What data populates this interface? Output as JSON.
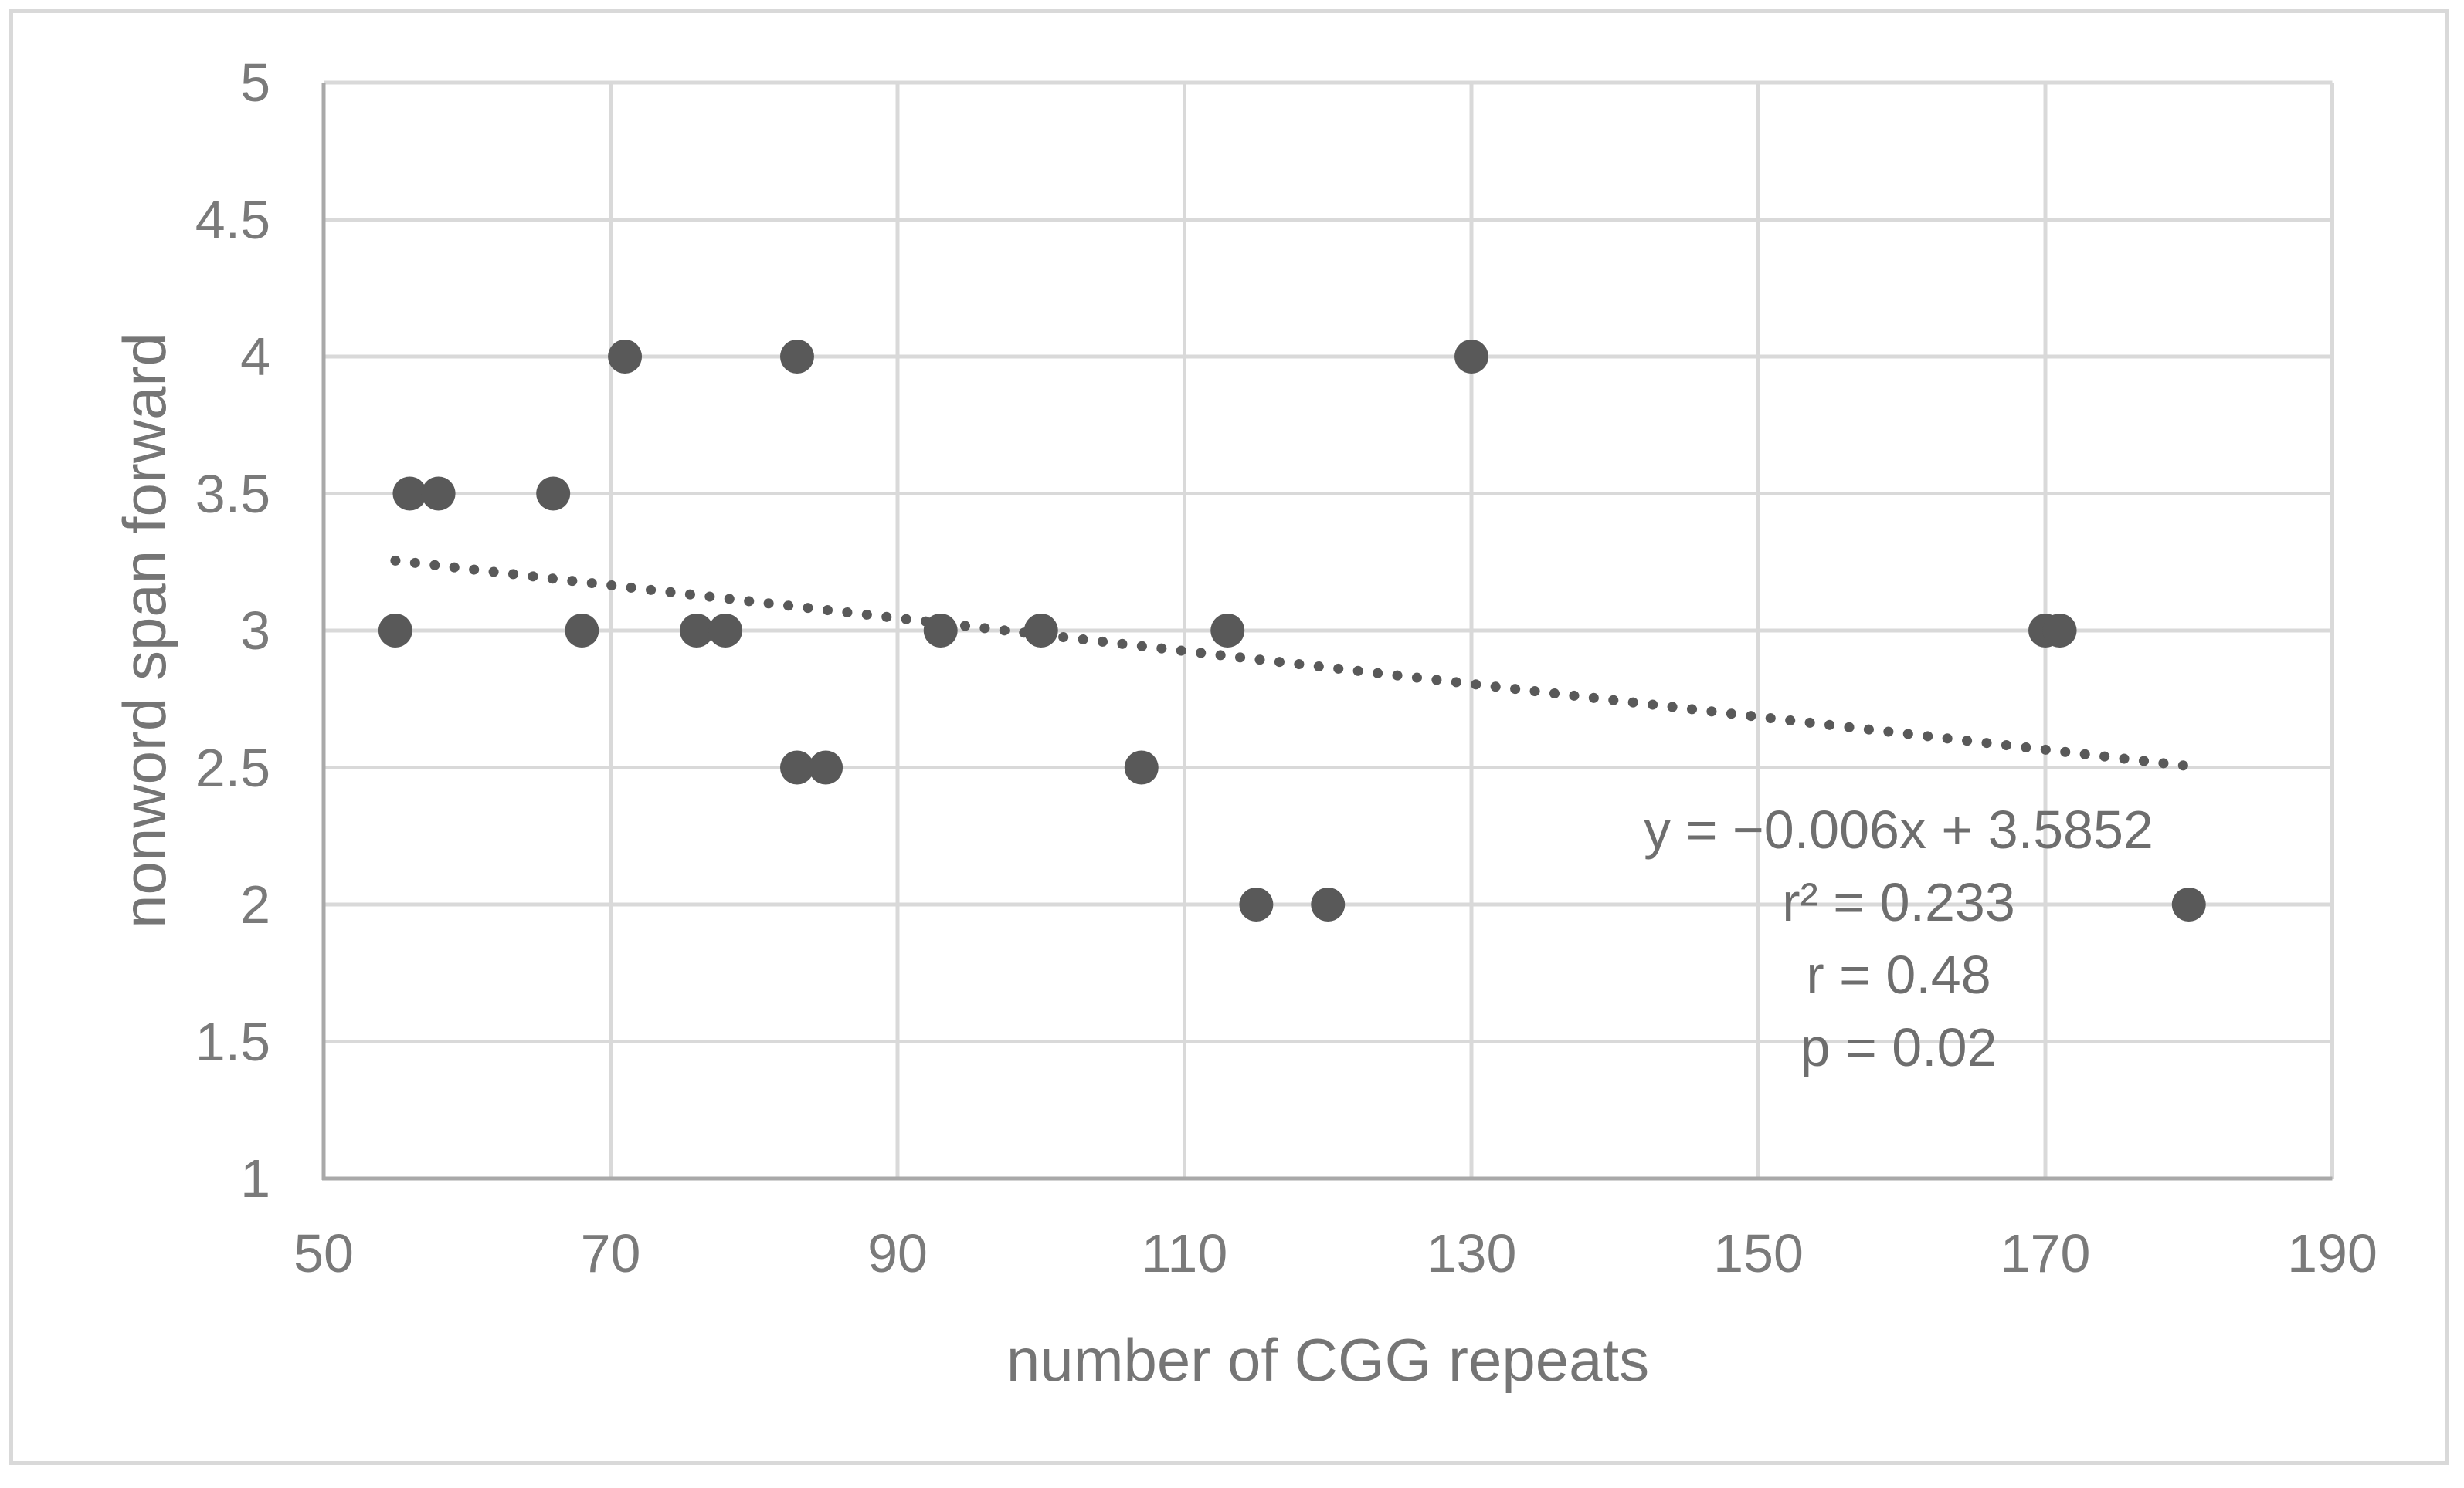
{
  "chart_data": {
    "type": "scatter",
    "title": "",
    "xlabel": "number of CGG repeats",
    "ylabel": "nonword span forward",
    "xlim": [
      50,
      190
    ],
    "ylim": [
      1,
      5
    ],
    "x_ticks": [
      50,
      70,
      90,
      110,
      130,
      150,
      170,
      190
    ],
    "y_ticks": [
      1,
      1.5,
      2,
      2.5,
      3,
      3.5,
      4,
      4.5,
      5
    ],
    "grid": true,
    "legend": false,
    "points": [
      {
        "x": 55,
        "y": 3
      },
      {
        "x": 56,
        "y": 3.5
      },
      {
        "x": 58,
        "y": 3.5
      },
      {
        "x": 66,
        "y": 3.5
      },
      {
        "x": 68,
        "y": 3
      },
      {
        "x": 71,
        "y": 4
      },
      {
        "x": 76,
        "y": 3
      },
      {
        "x": 78,
        "y": 3
      },
      {
        "x": 83,
        "y": 4
      },
      {
        "x": 83,
        "y": 2.5
      },
      {
        "x": 85,
        "y": 2.5
      },
      {
        "x": 93,
        "y": 3
      },
      {
        "x": 100,
        "y": 3
      },
      {
        "x": 107,
        "y": 2.5
      },
      {
        "x": 113,
        "y": 3
      },
      {
        "x": 115,
        "y": 2
      },
      {
        "x": 120,
        "y": 2
      },
      {
        "x": 130,
        "y": 4
      },
      {
        "x": 170,
        "y": 3
      },
      {
        "x": 171,
        "y": 3
      },
      {
        "x": 180,
        "y": 2
      }
    ],
    "trendline": {
      "type": "linear",
      "slope": -0.006,
      "intercept": 3.5852,
      "x_start": 55,
      "x_end": 180,
      "style": "dotted"
    },
    "annotation": {
      "lines": [
        "y = −0.006x + 3.5852",
        "r² = 0.233",
        "r = 0.48",
        "p = 0.02"
      ]
    },
    "colors": {
      "marker": "#595959",
      "trendline": "#595959",
      "gridline": "#d9d9d9",
      "axis_line": "#a9a9a9",
      "tick_text": "#7a7a7a",
      "title_text": "#757575",
      "annotation_text": "#6e6e6e",
      "figure_border": "#d9d9d9",
      "background": "#ffffff"
    }
  }
}
